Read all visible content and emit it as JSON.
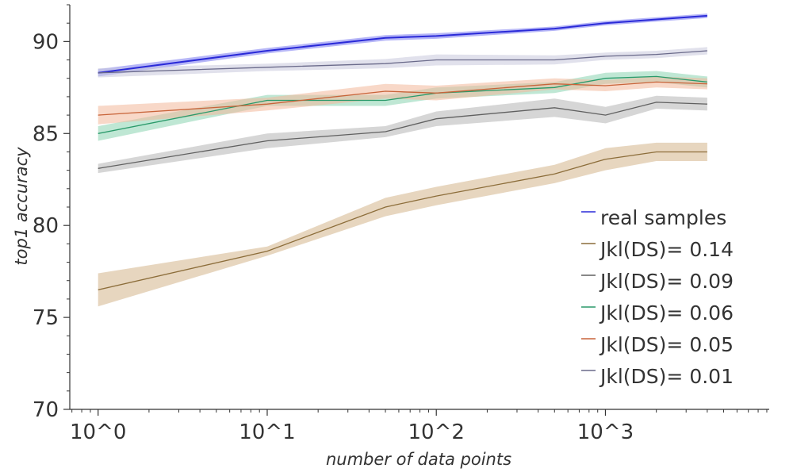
{
  "chart_data": {
    "type": "line",
    "xlabel": "number of data points",
    "ylabel": "top1 accuracy",
    "xscale": "log",
    "xlim": [
      0.68,
      9300
    ],
    "ylim": [
      70,
      92
    ],
    "x_ticks": [
      1,
      10,
      100,
      1000
    ],
    "x_tick_labels": [
      "10^0",
      "10^1",
      "10^2",
      "10^3"
    ],
    "y_ticks": [
      70,
      75,
      80,
      85,
      90
    ],
    "y_tick_labels": [
      "70",
      "75",
      "80",
      "85",
      "90"
    ],
    "grid": false,
    "legend_position": "bottom-right",
    "series": [
      {
        "name": "real samples",
        "color": "#2a2ad8",
        "band_color": "#7a7af0",
        "x": [
          1,
          10,
          50,
          100,
          500,
          1000,
          2000,
          4000
        ],
        "y": [
          88.3,
          89.5,
          90.2,
          90.3,
          90.7,
          91.0,
          91.2,
          91.4
        ],
        "spread": [
          0.2,
          0.15,
          0.15,
          0.15,
          0.12,
          0.12,
          0.12,
          0.12
        ]
      },
      {
        "name": "Jkl(DS)= 0.14",
        "color": "#8c6d3a",
        "band_color": "#d4b48a",
        "x": [
          1,
          10,
          50,
          100,
          500,
          1000,
          2000,
          4000
        ],
        "y": [
          76.5,
          78.6,
          81.0,
          81.6,
          82.8,
          83.6,
          84.0,
          84.0
        ],
        "spread": [
          0.9,
          0.25,
          0.5,
          0.5,
          0.5,
          0.6,
          0.5,
          0.5
        ]
      },
      {
        "name": "Jkl(DS)= 0.09",
        "color": "#606060",
        "band_color": "#b4b4b4",
        "x": [
          1,
          10,
          50,
          100,
          500,
          1000,
          2000,
          4000
        ],
        "y": [
          83.1,
          84.6,
          85.1,
          85.8,
          86.4,
          86.0,
          86.7,
          86.6
        ],
        "spread": [
          0.25,
          0.4,
          0.3,
          0.4,
          0.5,
          0.45,
          0.35,
          0.35
        ]
      },
      {
        "name": "Jkl(DS)= 0.06",
        "color": "#2a9a6a",
        "band_color": "#8ad4b0",
        "x": [
          1,
          10,
          50,
          100,
          500,
          1000,
          2000,
          4000
        ],
        "y": [
          85.0,
          86.8,
          86.8,
          87.2,
          87.5,
          88.0,
          88.1,
          87.8
        ],
        "spread": [
          0.4,
          0.3,
          0.3,
          0.3,
          0.3,
          0.3,
          0.3,
          0.3
        ]
      },
      {
        "name": "Jkl(DS)= 0.05",
        "color": "#c8643a",
        "band_color": "#f2b89a",
        "x": [
          1,
          10,
          50,
          100,
          500,
          1000,
          2000,
          4000
        ],
        "y": [
          86.0,
          86.6,
          87.3,
          87.2,
          87.7,
          87.6,
          87.8,
          87.7
        ],
        "spread": [
          0.5,
          0.35,
          0.4,
          0.4,
          0.3,
          0.3,
          0.3,
          0.3
        ]
      },
      {
        "name": "Jkl(DS)= 0.01",
        "color": "#6a6a8a",
        "band_color": "#c8c8dc",
        "x": [
          1,
          10,
          50,
          100,
          500,
          1000,
          2000,
          4000
        ],
        "y": [
          88.3,
          88.6,
          88.8,
          89.0,
          89.0,
          89.2,
          89.3,
          89.5
        ],
        "spread": [
          0.25,
          0.2,
          0.25,
          0.3,
          0.25,
          0.2,
          0.2,
          0.2
        ]
      }
    ]
  }
}
